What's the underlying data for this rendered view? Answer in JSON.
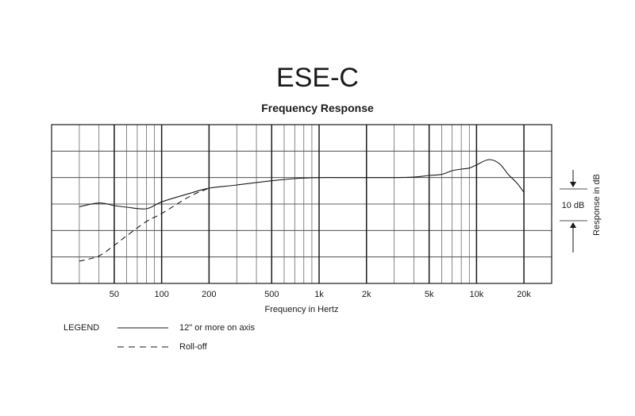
{
  "model": "ESE-C",
  "chart_data": {
    "type": "line",
    "title": "Frequency Response",
    "xlabel": "Frequency in Hertz",
    "ylabel": "Response in dB",
    "xscale": "log",
    "xlim": [
      20,
      30000
    ],
    "ylim": [
      -20,
      10
    ],
    "grid": true,
    "scale_marker": "10 dB",
    "x_ticks": [
      {
        "value": 50,
        "label": "50"
      },
      {
        "value": 100,
        "label": "100"
      },
      {
        "value": 200,
        "label": "200"
      },
      {
        "value": 500,
        "label": "500"
      },
      {
        "value": 1000,
        "label": "1k"
      },
      {
        "value": 2000,
        "label": "2k"
      },
      {
        "value": 5000,
        "label": "5k"
      },
      {
        "value": 10000,
        "label": "10k"
      },
      {
        "value": 20000,
        "label": "20k"
      }
    ],
    "legend": {
      "title": "LEGEND",
      "placement": "bottom-left"
    },
    "series": [
      {
        "name": "12\" or more on axis",
        "style": "solid",
        "points": [
          [
            30,
            -5.5
          ],
          [
            40,
            -4.8
          ],
          [
            50,
            -5.3
          ],
          [
            60,
            -5.6
          ],
          [
            80,
            -5.9
          ],
          [
            100,
            -4.6
          ],
          [
            150,
            -3.0
          ],
          [
            200,
            -2.0
          ],
          [
            300,
            -1.4
          ],
          [
            500,
            -0.6
          ],
          [
            700,
            -0.2
          ],
          [
            1000,
            0
          ],
          [
            1500,
            0
          ],
          [
            2000,
            0
          ],
          [
            3000,
            0
          ],
          [
            4000,
            0.1
          ],
          [
            5000,
            0.4
          ],
          [
            6000,
            0.6
          ],
          [
            7000,
            1.3
          ],
          [
            8000,
            1.6
          ],
          [
            9000,
            1.8
          ],
          [
            10000,
            2.4
          ],
          [
            12000,
            3.4
          ],
          [
            14000,
            2.6
          ],
          [
            16000,
            0.5
          ],
          [
            18000,
            -1.0
          ],
          [
            20000,
            -2.8
          ]
        ]
      },
      {
        "name": "Roll-off",
        "style": "dashed",
        "points": [
          [
            30,
            -15.8
          ],
          [
            40,
            -14.8
          ],
          [
            50,
            -12.8
          ],
          [
            60,
            -11.0
          ],
          [
            80,
            -8.3
          ],
          [
            100,
            -6.8
          ],
          [
            150,
            -3.6
          ],
          [
            200,
            -2.0
          ]
        ]
      }
    ]
  }
}
